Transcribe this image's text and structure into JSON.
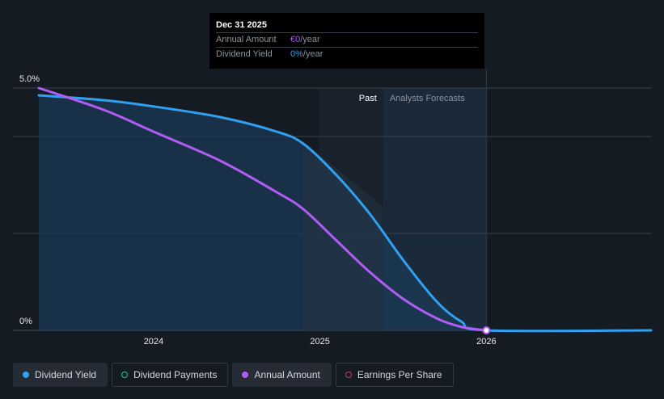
{
  "chart_data": {
    "type": "line",
    "x_range": [
      2023.31,
      2026.99
    ],
    "ylim": [
      0,
      5.0
    ],
    "y_ticks": [
      {
        "value": 5.0,
        "label": "5.0%"
      },
      {
        "value": 0,
        "label": "0%"
      }
    ],
    "gridlines": [
      5.0,
      4.0,
      2.0
    ],
    "x_ticks": [
      {
        "value": 2024.0,
        "label": "2024"
      },
      {
        "value": 2025.0,
        "label": "2025"
      },
      {
        "value": 2026.0,
        "label": "2026"
      }
    ],
    "region_labels": {
      "past": "Past",
      "forecast": "Analysts Forecasts"
    },
    "past_end": 2025.38,
    "forecast_end": 2026.0,
    "series": [
      {
        "name": "Dividend Yield",
        "color": "#2fa1f0",
        "points": [
          [
            2023.31,
            4.85
          ],
          [
            2023.7,
            4.75
          ],
          [
            2024.0,
            4.62
          ],
          [
            2024.4,
            4.4
          ],
          [
            2024.74,
            4.1
          ],
          [
            2024.9,
            3.85
          ],
          [
            2025.1,
            3.2
          ],
          [
            2025.3,
            2.4
          ],
          [
            2025.5,
            1.45
          ],
          [
            2025.7,
            0.6
          ],
          [
            2025.85,
            0.18
          ],
          [
            2026.0,
            0.0
          ],
          [
            2026.99,
            0.0
          ]
        ]
      },
      {
        "name": "Annual Amount",
        "color": "#b05cf5",
        "points": [
          [
            2023.31,
            5.0
          ],
          [
            2023.7,
            4.55
          ],
          [
            2024.0,
            4.1
          ],
          [
            2024.4,
            3.5
          ],
          [
            2024.74,
            2.85
          ],
          [
            2024.9,
            2.5
          ],
          [
            2025.1,
            1.85
          ],
          [
            2025.3,
            1.2
          ],
          [
            2025.5,
            0.65
          ],
          [
            2025.7,
            0.25
          ],
          [
            2025.85,
            0.07
          ],
          [
            2026.0,
            0.0
          ]
        ]
      }
    ],
    "marker": {
      "x": 2026.0,
      "y": 0.0,
      "color": "#b05cf5"
    },
    "tooltip": {
      "date": "Dec 31 2025",
      "rows": [
        {
          "label": "Annual Amount",
          "value": "€0",
          "unit": "/year"
        },
        {
          "label": "Dividend Yield",
          "value": "0%",
          "unit": "/year"
        }
      ]
    },
    "legend": [
      {
        "label": "Dividend Yield",
        "color": "#2fa1f0",
        "filled": true,
        "active": true
      },
      {
        "label": "Dividend Payments",
        "color": "#2ec4a6",
        "filled": false,
        "active": false
      },
      {
        "label": "Annual Amount",
        "color": "#b05cf5",
        "filled": true,
        "active": true
      },
      {
        "label": "Earnings Per Share",
        "color": "#c2368a",
        "filled": false,
        "active": false
      }
    ]
  }
}
